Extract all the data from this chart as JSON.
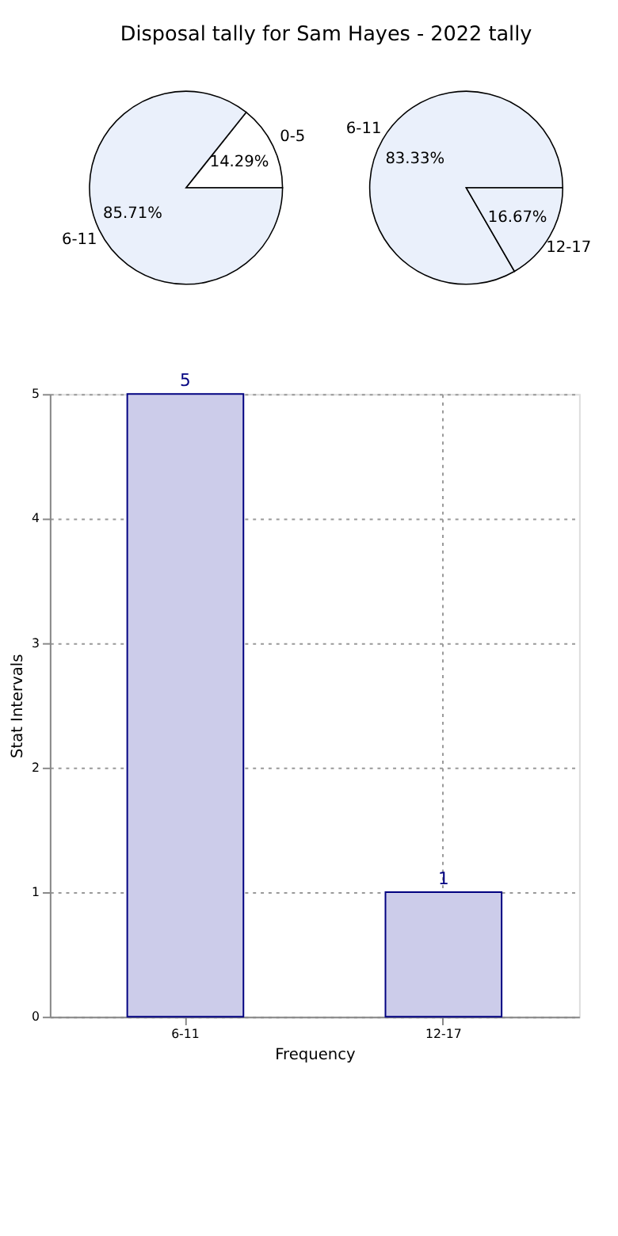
{
  "chart_data": [
    {
      "type": "pie",
      "title": "Disposal tally for Sam Hayes - 2022 tally",
      "categories": [
        "0-5",
        "6-11"
      ],
      "values": [
        14.29,
        85.71
      ],
      "value_labels": [
        "14.29%",
        "85.71%"
      ],
      "colors": [
        "#ffffff",
        "#eaf0fb"
      ]
    },
    {
      "type": "pie",
      "categories": [
        "6-11",
        "12-17"
      ],
      "values": [
        83.33,
        16.67
      ],
      "value_labels": [
        "83.33%",
        "16.67%"
      ],
      "colors": [
        "#eaf0fb",
        "#eaf0fb"
      ]
    },
    {
      "type": "bar",
      "categories": [
        "6-11",
        "12-17"
      ],
      "values": [
        5,
        1
      ],
      "color": "#ccccea",
      "xlabel": "Frequency",
      "ylabel": "Stat Intervals",
      "ylim": [
        0,
        5
      ],
      "yticks": [
        0,
        1,
        2,
        3,
        4,
        5
      ],
      "grid": true,
      "data_labels": true
    }
  ]
}
